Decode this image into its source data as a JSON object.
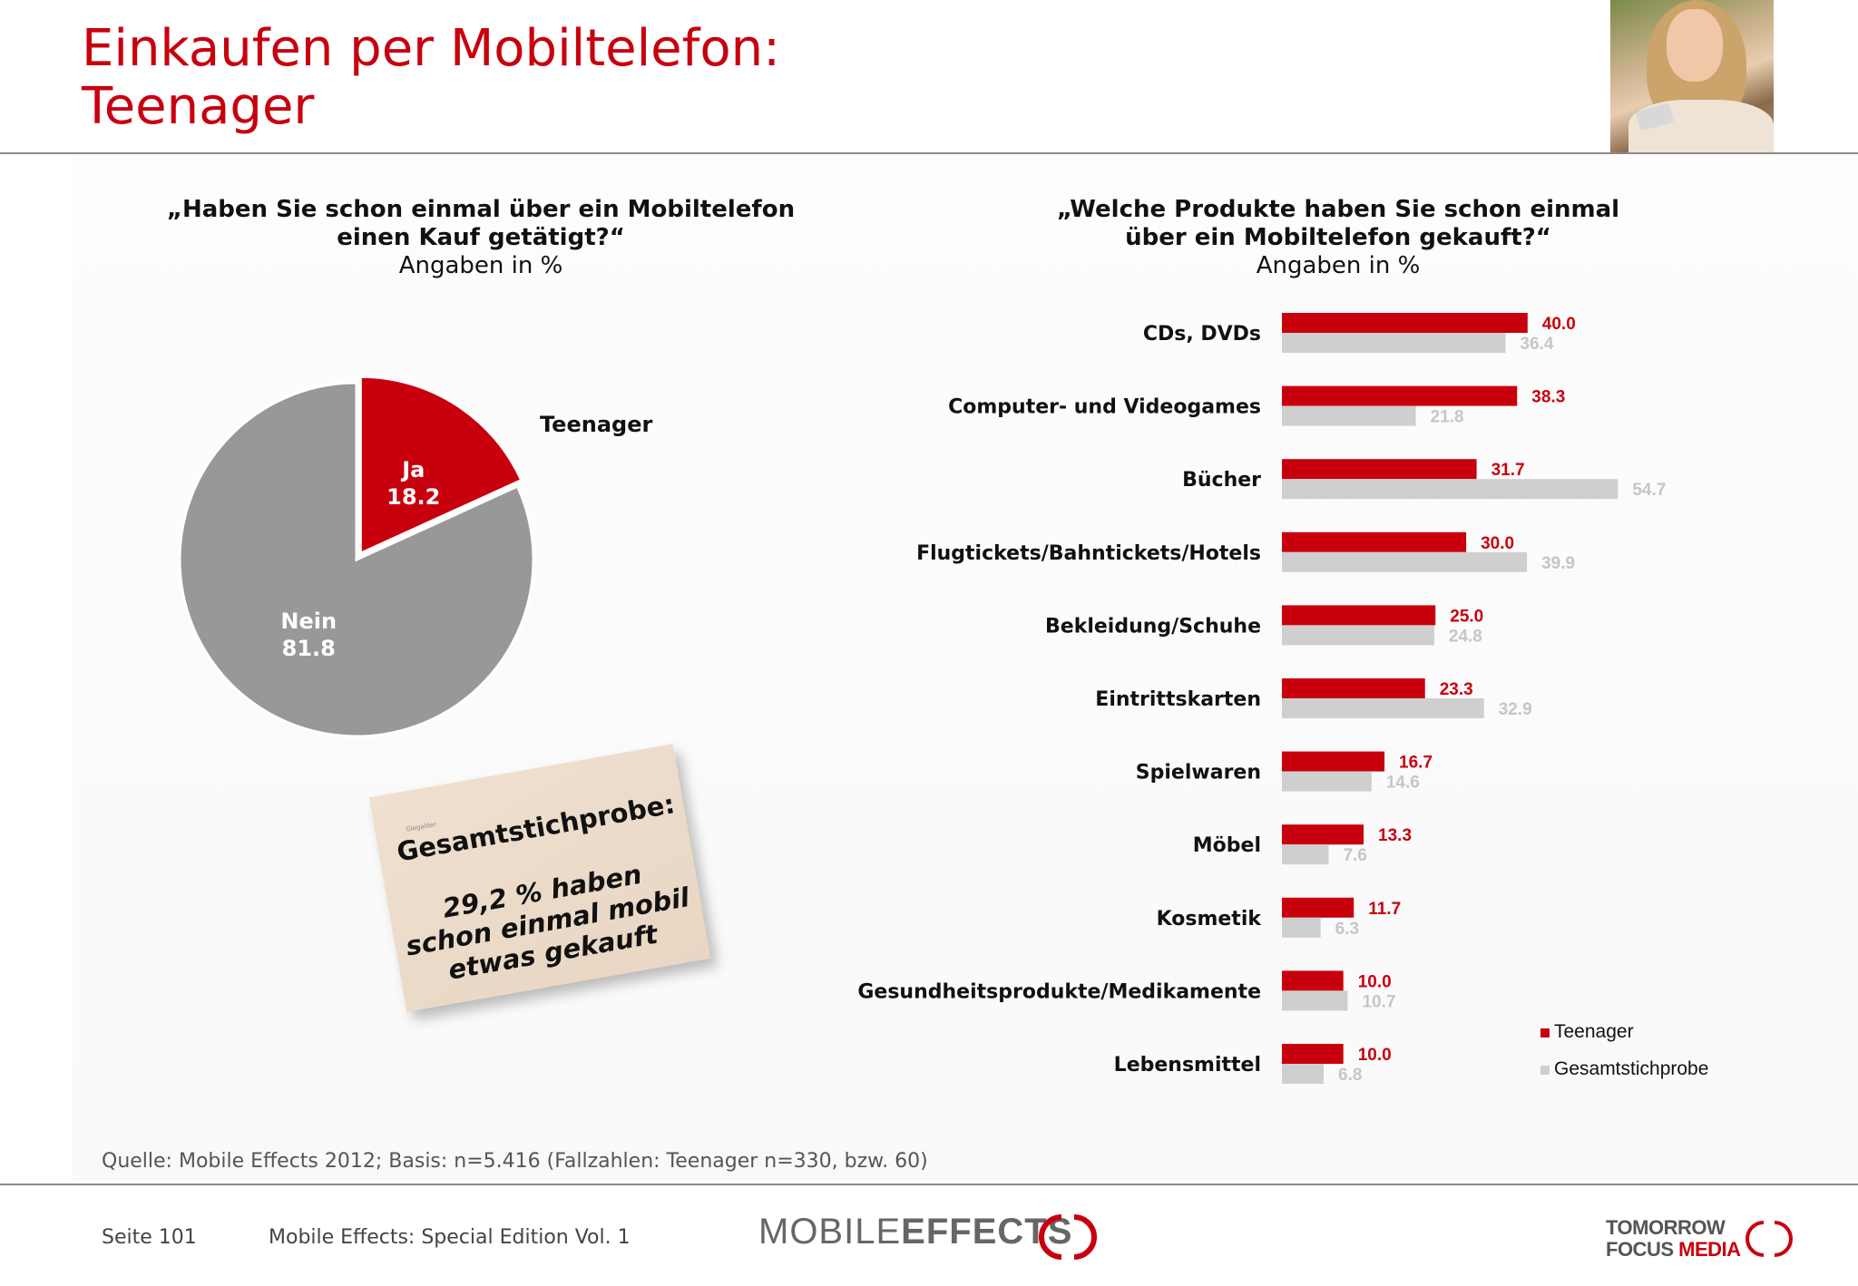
{
  "title": {
    "line1": "Einkaufen per Mobiltelefon:",
    "line2": "Teenager"
  },
  "left_question": {
    "line1": "„Haben Sie schon einmal über ein Mobiltelefon",
    "line2": "einen Kauf getätigt?“",
    "line3": "Angaben in %"
  },
  "right_question": {
    "line1": "„Welche Produkte haben Sie schon einmal",
    "line2": "über ein Mobiltelefon gekauft?“",
    "line3": "Angaben in %"
  },
  "note": {
    "tiny": "Glegalder",
    "headline": "Gesamtstichprobe:",
    "line1": "29,2 % haben",
    "line2": "schon einmal mobil",
    "line3": "etwas gekauft"
  },
  "source": "Quelle: Mobile Effects 2012; Basis: n=5.416 (Fallzahlen: Teenager n=330, bzw. 60)",
  "footer": {
    "page": "Seite 101",
    "publication": "Mobile Effects: Special Edition Vol. 1",
    "logo_left_a": "MOBILE",
    "logo_left_b": "EFFECTS",
    "logo_right_line1": "TOMORROW",
    "logo_right_line2a": "FOCUS",
    "logo_right_line2b": "MEDIA"
  },
  "colors": {
    "red": "#c8000e",
    "grey_pie": "#999899",
    "grey_bar": "#cfcfcf",
    "grey_label": "#c6c6c6"
  },
  "chart_data": [
    {
      "type": "pie",
      "series_label": "Teenager",
      "slices": [
        {
          "name": "Ja",
          "value": 18.2,
          "color": "#c8000e"
        },
        {
          "name": "Nein",
          "value": 81.8,
          "color": "#999899"
        }
      ]
    },
    {
      "type": "bar",
      "orientation": "horizontal",
      "categories": [
        "CDs, DVDs",
        "Computer- und Videogames",
        "Bücher",
        "Flugtickets/Bahntickets/Hotels",
        "Bekleidung/Schuhe",
        "Eintrittskarten",
        "Spielwaren",
        "Möbel",
        "Kosmetik",
        "Gesundheitsprodukte/Medikamente",
        "Lebensmittel"
      ],
      "series": [
        {
          "name": "Teenager",
          "color": "#c8000e",
          "values": [
            40.0,
            38.3,
            31.7,
            30.0,
            25.0,
            23.3,
            16.7,
            13.3,
            11.7,
            10.0,
            10.0
          ]
        },
        {
          "name": "Gesamtstichprobe",
          "color": "#cfcfcf",
          "values": [
            36.4,
            21.8,
            54.7,
            39.9,
            24.8,
            32.9,
            14.6,
            7.6,
            6.3,
            10.7,
            6.8
          ]
        }
      ],
      "legend_position": "bottom-right",
      "grid": false
    }
  ]
}
